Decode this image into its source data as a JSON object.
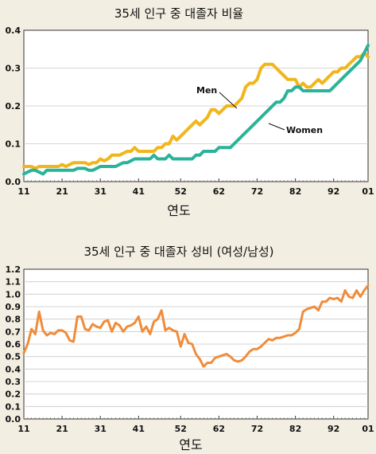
{
  "chart_data": [
    {
      "type": "line",
      "title": "35세 인구 중 대졸자 비율",
      "xlabel": "연도",
      "ylabel": "",
      "x_ticks": [
        "11",
        "21",
        "31",
        "41",
        "52",
        "62",
        "72",
        "82",
        "92",
        "01"
      ],
      "y_ticks": [
        "0.0",
        "0.1",
        "0.2",
        "0.3",
        "0.4"
      ],
      "ylim": [
        0,
        0.4
      ],
      "grid": "horizontal",
      "x": [
        1911,
        1912,
        1913,
        1914,
        1915,
        1916,
        1917,
        1918,
        1919,
        1920,
        1921,
        1922,
        1923,
        1924,
        1925,
        1926,
        1927,
        1928,
        1929,
        1930,
        1931,
        1932,
        1933,
        1934,
        1935,
        1936,
        1937,
        1938,
        1939,
        1940,
        1941,
        1942,
        1943,
        1944,
        1945,
        1946,
        1947,
        1948,
        1949,
        1950,
        1951,
        1952,
        1953,
        1954,
        1955,
        1956,
        1957,
        1958,
        1959,
        1960,
        1961,
        1962,
        1963,
        1964,
        1965,
        1966,
        1967,
        1968,
        1969,
        1970,
        1971,
        1972,
        1973,
        1974,
        1975,
        1976,
        1977,
        1978,
        1979,
        1980,
        1981,
        1982,
        1983,
        1984,
        1985,
        1986,
        1987,
        1988,
        1989,
        1990,
        1991,
        1992,
        1993,
        1994,
        1995,
        1996,
        1997,
        1998,
        1999,
        2000,
        2001
      ],
      "series": [
        {
          "name": "Men",
          "color": "#f2b51c",
          "values": [
            0.04,
            0.04,
            0.04,
            0.035,
            0.04,
            0.04,
            0.04,
            0.04,
            0.04,
            0.04,
            0.045,
            0.04,
            0.045,
            0.05,
            0.05,
            0.05,
            0.05,
            0.045,
            0.05,
            0.05,
            0.06,
            0.055,
            0.06,
            0.07,
            0.07,
            0.07,
            0.075,
            0.08,
            0.08,
            0.09,
            0.08,
            0.08,
            0.08,
            0.08,
            0.08,
            0.09,
            0.09,
            0.1,
            0.1,
            0.12,
            0.11,
            0.12,
            0.13,
            0.14,
            0.15,
            0.16,
            0.15,
            0.16,
            0.17,
            0.19,
            0.19,
            0.18,
            0.19,
            0.2,
            0.2,
            0.2,
            0.21,
            0.22,
            0.25,
            0.26,
            0.26,
            0.27,
            0.3,
            0.31,
            0.31,
            0.31,
            0.3,
            0.29,
            0.28,
            0.27,
            0.27,
            0.27,
            0.25,
            0.26,
            0.25,
            0.25,
            0.26,
            0.27,
            0.26,
            0.27,
            0.28,
            0.29,
            0.29,
            0.3,
            0.3,
            0.31,
            0.32,
            0.33,
            0.33,
            0.34,
            0.33
          ]
        },
        {
          "name": "Women",
          "color": "#2bb39a",
          "values": [
            0.02,
            0.025,
            0.03,
            0.03,
            0.025,
            0.02,
            0.03,
            0.03,
            0.03,
            0.03,
            0.03,
            0.03,
            0.03,
            0.03,
            0.035,
            0.035,
            0.035,
            0.03,
            0.03,
            0.035,
            0.04,
            0.04,
            0.04,
            0.04,
            0.04,
            0.045,
            0.05,
            0.05,
            0.055,
            0.06,
            0.06,
            0.06,
            0.06,
            0.06,
            0.07,
            0.06,
            0.06,
            0.06,
            0.07,
            0.06,
            0.06,
            0.06,
            0.06,
            0.06,
            0.06,
            0.07,
            0.07,
            0.08,
            0.08,
            0.08,
            0.08,
            0.09,
            0.09,
            0.09,
            0.09,
            0.1,
            0.11,
            0.12,
            0.13,
            0.14,
            0.15,
            0.16,
            0.17,
            0.18,
            0.19,
            0.2,
            0.21,
            0.21,
            0.22,
            0.24,
            0.24,
            0.25,
            0.25,
            0.24,
            0.24,
            0.24,
            0.24,
            0.24,
            0.24,
            0.24,
            0.24,
            0.25,
            0.26,
            0.27,
            0.28,
            0.29,
            0.3,
            0.31,
            0.32,
            0.34,
            0.36
          ]
        }
      ]
    },
    {
      "type": "line",
      "title": "35세 인구 중 대졸자 성비 (여성/남성)",
      "xlabel": "연도",
      "ylabel": "",
      "x_ticks": [
        "11",
        "21",
        "31",
        "41",
        "52",
        "62",
        "72",
        "82",
        "92",
        "01"
      ],
      "y_ticks": [
        "0.0",
        "0.1",
        "0.2",
        "0.3",
        "0.4",
        "0.5",
        "0.6",
        "0.7",
        "0.8",
        "0.9",
        "1.0",
        "1.1",
        "1.2"
      ],
      "ylim": [
        0,
        1.2
      ],
      "grid": "horizontal",
      "x": [
        1911,
        1912,
        1913,
        1914,
        1915,
        1916,
        1917,
        1918,
        1919,
        1920,
        1921,
        1922,
        1923,
        1924,
        1925,
        1926,
        1927,
        1928,
        1929,
        1930,
        1931,
        1932,
        1933,
        1934,
        1935,
        1936,
        1937,
        1938,
        1939,
        1940,
        1941,
        1942,
        1943,
        1944,
        1945,
        1946,
        1947,
        1948,
        1949,
        1950,
        1951,
        1952,
        1953,
        1954,
        1955,
        1956,
        1957,
        1958,
        1959,
        1960,
        1961,
        1962,
        1963,
        1964,
        1965,
        1966,
        1967,
        1968,
        1969,
        1970,
        1971,
        1972,
        1973,
        1974,
        1975,
        1976,
        1977,
        1978,
        1979,
        1980,
        1981,
        1982,
        1983,
        1984,
        1985,
        1986,
        1987,
        1988,
        1989,
        1990,
        1991,
        1992,
        1993,
        1994,
        1995,
        1996,
        1997,
        1998,
        1999,
        2000,
        2001
      ],
      "series": [
        {
          "color": "#f08c3a",
          "values": [
            0.53,
            0.6,
            0.72,
            0.68,
            0.86,
            0.71,
            0.67,
            0.69,
            0.68,
            0.71,
            0.71,
            0.69,
            0.63,
            0.62,
            0.82,
            0.82,
            0.72,
            0.71,
            0.76,
            0.74,
            0.73,
            0.78,
            0.79,
            0.7,
            0.77,
            0.75,
            0.7,
            0.74,
            0.75,
            0.77,
            0.82,
            0.7,
            0.74,
            0.68,
            0.78,
            0.8,
            0.87,
            0.71,
            0.73,
            0.71,
            0.7,
            0.58,
            0.68,
            0.61,
            0.6,
            0.52,
            0.48,
            0.42,
            0.45,
            0.45,
            0.49,
            0.5,
            0.51,
            0.52,
            0.5,
            0.47,
            0.46,
            0.47,
            0.5,
            0.54,
            0.56,
            0.56,
            0.58,
            0.61,
            0.64,
            0.63,
            0.65,
            0.65,
            0.66,
            0.67,
            0.67,
            0.69,
            0.72,
            0.86,
            0.88,
            0.89,
            0.9,
            0.87,
            0.94,
            0.94,
            0.97,
            0.96,
            0.97,
            0.94,
            1.03,
            0.98,
            0.97,
            1.03,
            0.98,
            1.03,
            1.07
          ]
        }
      ]
    }
  ]
}
